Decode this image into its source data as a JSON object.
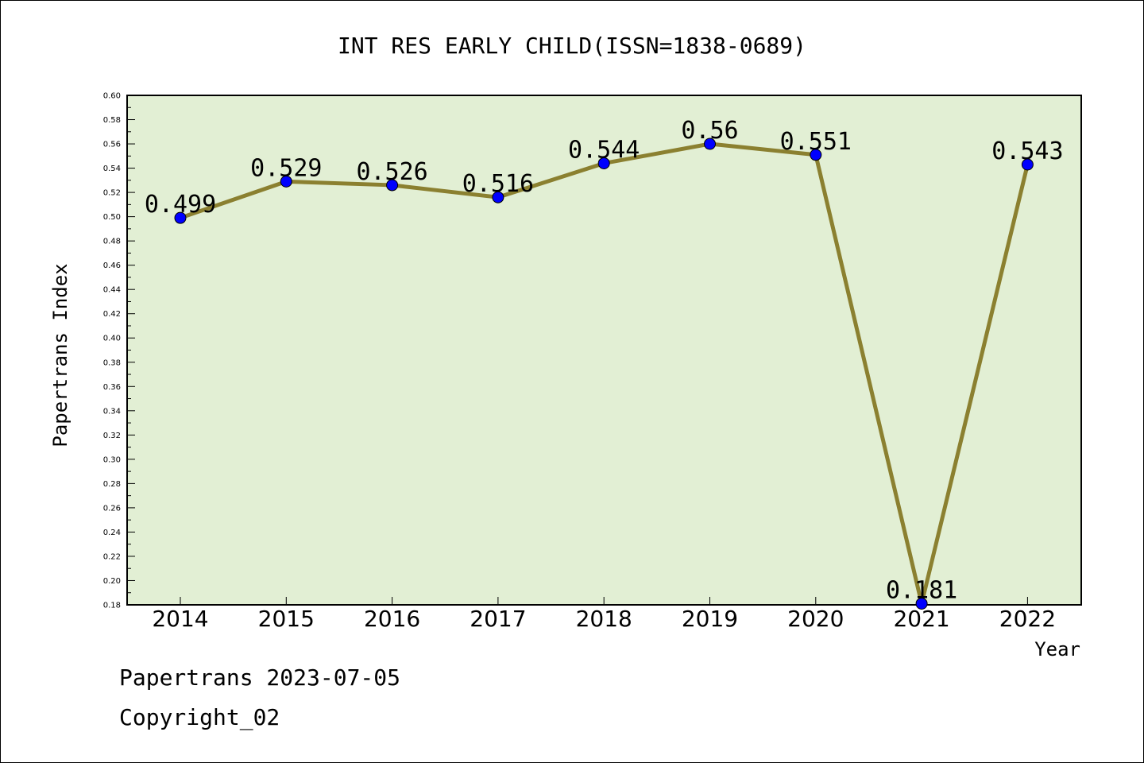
{
  "chart_data": {
    "type": "line",
    "title": "INT RES EARLY CHILD(ISSN=1838-0689)",
    "xlabel": "Year",
    "ylabel": "Papertrans Index",
    "categories": [
      "2014",
      "2015",
      "2016",
      "2017",
      "2018",
      "2019",
      "2020",
      "2021",
      "2022"
    ],
    "values": [
      0.499,
      0.529,
      0.526,
      0.516,
      0.544,
      0.56,
      0.551,
      0.181,
      0.543
    ],
    "data_labels": [
      "0.499",
      "0.529",
      "0.526",
      "0.516",
      "0.544",
      "0.56",
      "0.551",
      "0.181",
      "0.543"
    ],
    "ylim": [
      0.18,
      0.6
    ],
    "ytick_step": 0.02,
    "grid": false,
    "colors": {
      "plot_background": "#e2efd4",
      "line": "#8b8030",
      "marker": "#0000ff",
      "axis": "#000000"
    }
  },
  "footer": {
    "line1": "Papertrans 2023-07-05",
    "line2": "Copyright_02"
  }
}
